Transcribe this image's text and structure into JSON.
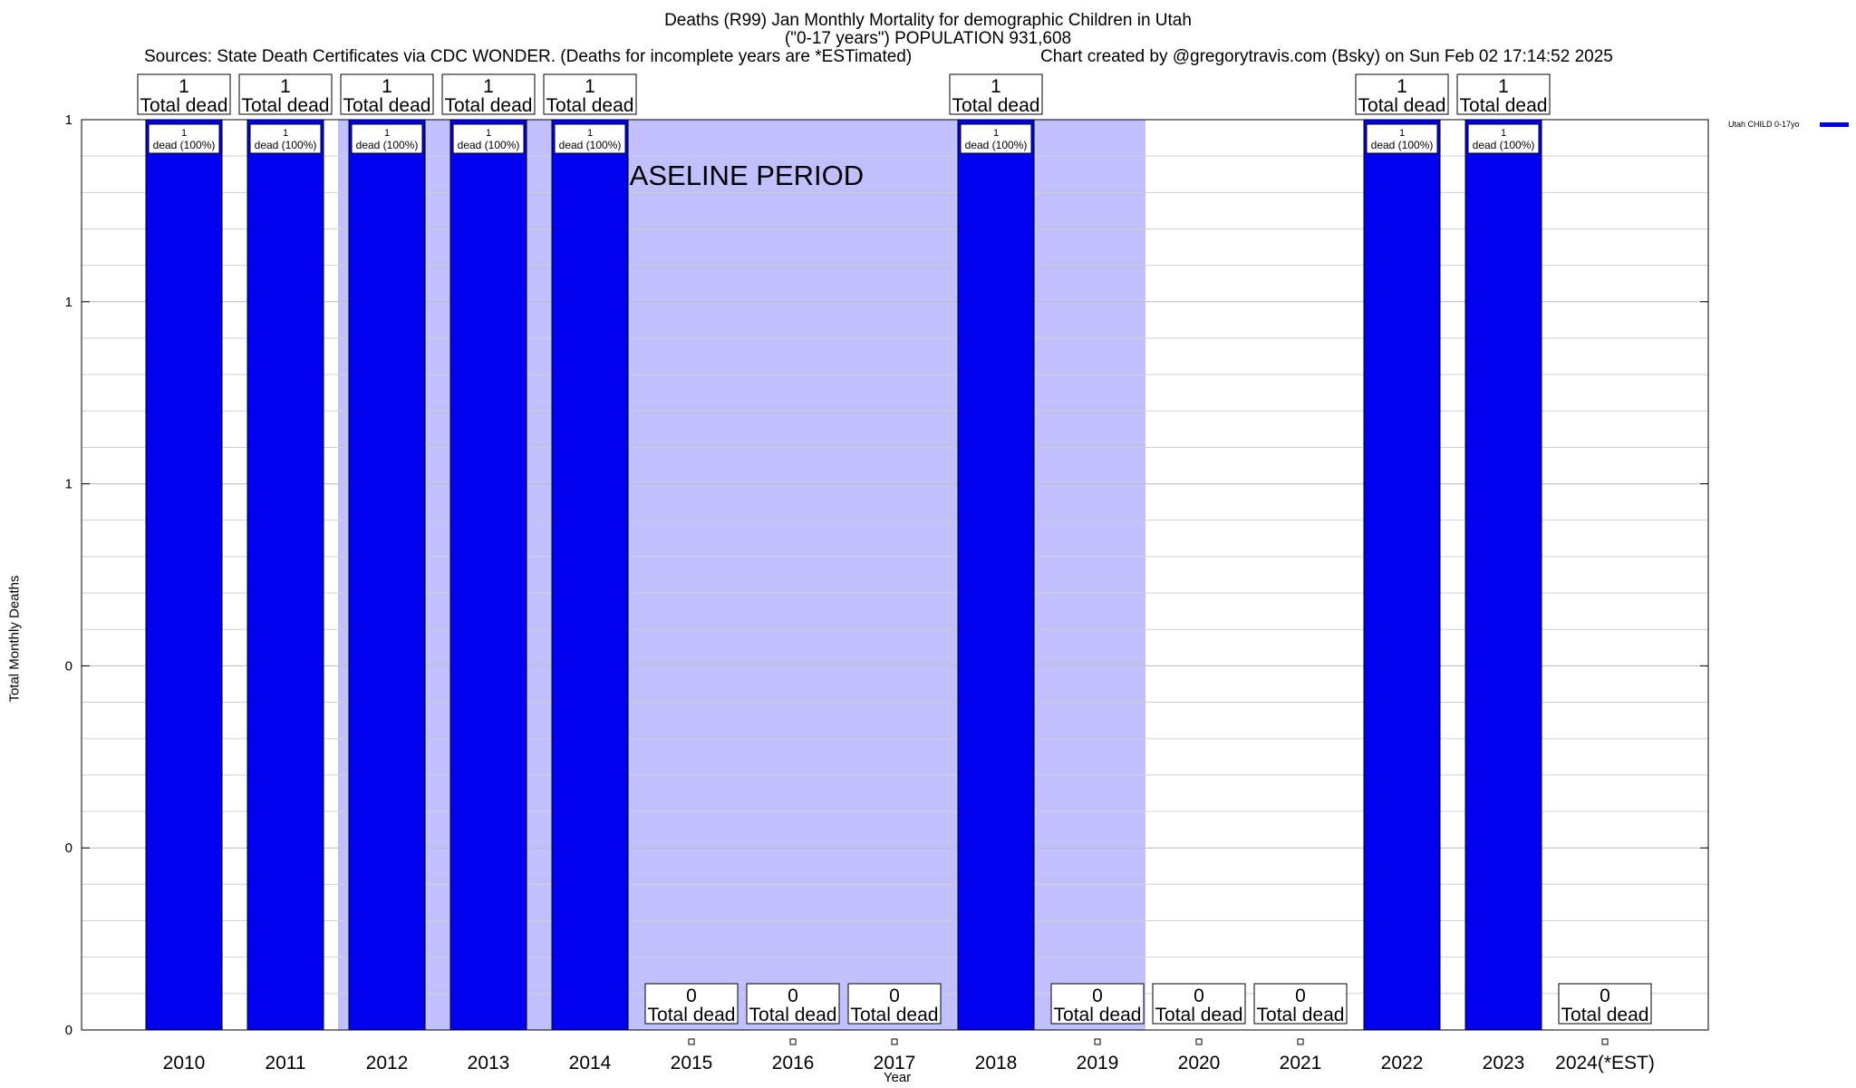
{
  "chart_data": {
    "type": "bar",
    "title": "Deaths (R99) Jan Monthly Mortality for demographic Children in Utah",
    "subtitle": "(\"0-17 years\") POPULATION 931,608",
    "sources": "Sources: State Death Certificates via CDC WONDER. (Deaths for incomplete years are *ESTimated)",
    "credit": "Chart created by @gregorytravis.com (Bsky) on Sun Feb 02 17:14:52 2025",
    "xlabel": "Year",
    "ylabel": "Total Monthly Deaths",
    "categories": [
      "2010",
      "2011",
      "2012",
      "2013",
      "2014",
      "2015",
      "2016",
      "2017",
      "2018",
      "2019",
      "2020",
      "2021",
      "2022",
      "2023",
      "2024(*EST)"
    ],
    "series": [
      {
        "name": "Utah CHILD 0-17yo",
        "color": "#0000ee",
        "values": [
          1,
          1,
          1,
          1,
          1,
          0,
          0,
          0,
          1,
          0,
          0,
          0,
          1,
          1,
          0
        ]
      }
    ],
    "ylim": [
      0,
      1
    ],
    "yticks": [
      {
        "value": 0,
        "label": "0"
      },
      {
        "value": 0.2,
        "label": "0"
      },
      {
        "value": 0.4,
        "label": "0"
      },
      {
        "value": 0.6,
        "label": "1"
      },
      {
        "value": 0.8,
        "label": "1"
      },
      {
        "value": 1.0,
        "label": "1"
      }
    ],
    "total_label_suffix": "Total dead",
    "inner_label": "dead (100%)",
    "baseline": {
      "label": "BASELINE PERIOD",
      "color": "#c0c0ff",
      "from": "2012",
      "to": "2019"
    },
    "grid": true,
    "legend_position": "top-right"
  }
}
